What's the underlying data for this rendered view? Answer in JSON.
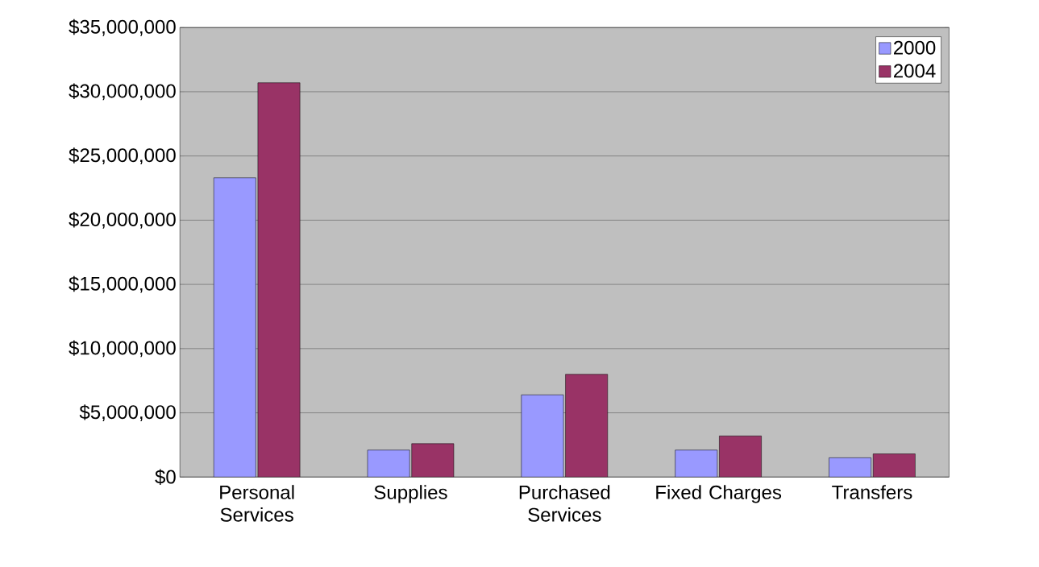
{
  "chart_data": {
    "type": "bar",
    "categories": [
      "Personal Services",
      "Supplies",
      "Purchased Services",
      "Fixed Charges",
      "Transfers"
    ],
    "series": [
      {
        "name": "2000",
        "color": "#9999ff",
        "values": [
          23300000,
          2100000,
          6400000,
          2100000,
          1500000
        ]
      },
      {
        "name": "2004",
        "color": "#993366",
        "values": [
          30700000,
          2600000,
          8000000,
          3200000,
          1800000
        ]
      }
    ],
    "ylim": [
      0,
      35000000
    ],
    "yticks": [
      {
        "value": 0,
        "label": "$0"
      },
      {
        "value": 5000000,
        "label": "$5,000,000"
      },
      {
        "value": 10000000,
        "label": "$10,000,000"
      },
      {
        "value": 15000000,
        "label": "$15,000,000"
      },
      {
        "value": 20000000,
        "label": "$20,000,000"
      },
      {
        "value": 25000000,
        "label": "$25,000,000"
      },
      {
        "value": 30000000,
        "label": "$30,000,000"
      },
      {
        "value": 35000000,
        "label": "$35,000,000"
      }
    ],
    "grid": "y",
    "legend": "top right"
  }
}
